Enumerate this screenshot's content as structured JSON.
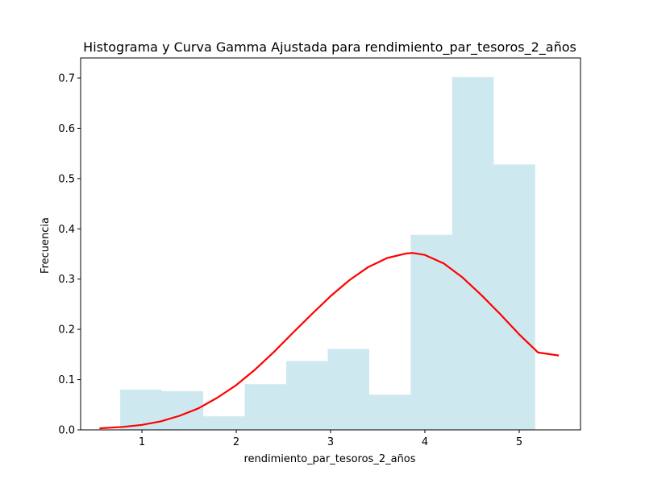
{
  "chart_data": {
    "type": "bar",
    "title": "Histograma y Curva Gamma Ajustada para rendimiento_par_tesoros_2_años",
    "xlabel": "rendimiento_par_tesoros_2_años",
    "ylabel": "Frecuencia",
    "xlim": [
      0.35,
      5.65
    ],
    "ylim": [
      0,
      0.74
    ],
    "x_ticks": [
      "1",
      "2",
      "3",
      "4",
      "5"
    ],
    "y_ticks": [
      "0.0",
      "0.1",
      "0.2",
      "0.3",
      "0.4",
      "0.5",
      "0.6",
      "0.7"
    ],
    "grid": false,
    "histogram": {
      "bin_edges": [
        0.77,
        1.21,
        1.65,
        2.09,
        2.53,
        2.97,
        3.41,
        3.85,
        4.29,
        4.73,
        5.17
      ],
      "values": [
        0.08,
        0.077,
        0.027,
        0.091,
        0.137,
        0.161,
        0.07,
        0.388,
        0.702,
        0.528
      ],
      "color": "#add8e6"
    },
    "curve": {
      "name": "",
      "color": "#ff0000",
      "x": [
        0.55,
        0.8,
        1.0,
        1.2,
        1.4,
        1.6,
        1.8,
        2.0,
        2.2,
        2.4,
        2.6,
        2.8,
        3.0,
        3.2,
        3.4,
        3.6,
        3.8,
        3.87,
        4.0,
        4.2,
        4.4,
        4.6,
        4.8,
        5.0,
        5.2,
        5.42
      ],
      "y": [
        0.003,
        0.006,
        0.01,
        0.017,
        0.028,
        0.043,
        0.064,
        0.089,
        0.12,
        0.155,
        0.193,
        0.23,
        0.266,
        0.298,
        0.324,
        0.342,
        0.351,
        0.352,
        0.348,
        0.331,
        0.303,
        0.268,
        0.23,
        0.19,
        0.154,
        0.148
      ]
    }
  }
}
